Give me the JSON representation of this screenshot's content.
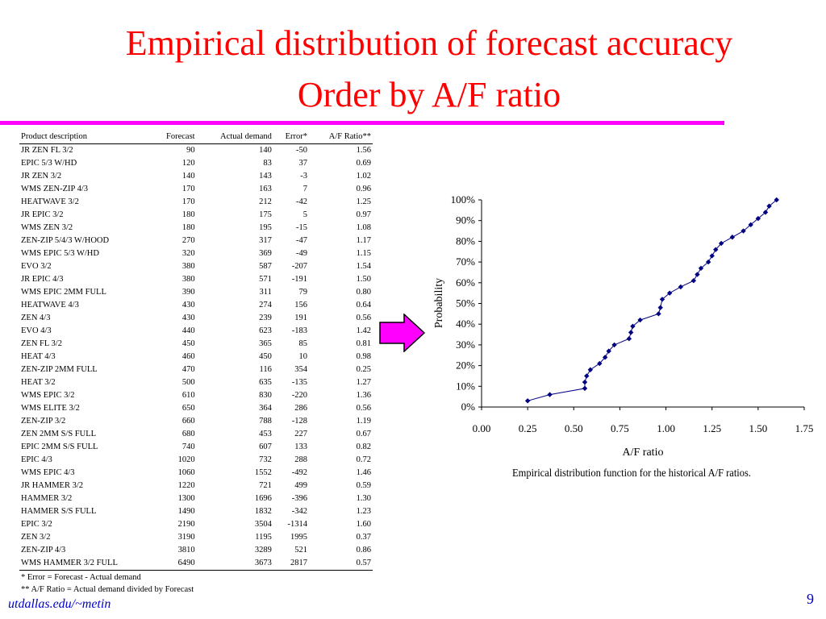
{
  "slide": {
    "title_line1": "Empirical distribution of forecast accuracy",
    "title_line2": "Order by A/F ratio",
    "footer": "utdallas.edu/~metin",
    "page_number": "9",
    "rule_color": "#ff00ff",
    "title_color": "#ff0000"
  },
  "table": {
    "headers": [
      "Product description",
      "Forecast",
      "Actual demand",
      "Error*",
      "A/F Ratio**"
    ],
    "rows": [
      [
        "JR ZEN FL 3/2",
        "90",
        "140",
        "-50",
        "1.56"
      ],
      [
        "EPIC 5/3 W/HD",
        "120",
        "83",
        "37",
        "0.69"
      ],
      [
        "JR ZEN 3/2",
        "140",
        "143",
        "-3",
        "1.02"
      ],
      [
        "WMS ZEN-ZIP 4/3",
        "170",
        "163",
        "7",
        "0.96"
      ],
      [
        "HEATWAVE 3/2",
        "170",
        "212",
        "-42",
        "1.25"
      ],
      [
        "JR EPIC 3/2",
        "180",
        "175",
        "5",
        "0.97"
      ],
      [
        "WMS ZEN 3/2",
        "180",
        "195",
        "-15",
        "1.08"
      ],
      [
        "ZEN-ZIP 5/4/3 W/HOOD",
        "270",
        "317",
        "-47",
        "1.17"
      ],
      [
        "WMS EPIC 5/3 W/HD",
        "320",
        "369",
        "-49",
        "1.15"
      ],
      [
        "EVO  3/2",
        "380",
        "587",
        "-207",
        "1.54"
      ],
      [
        "JR EPIC 4/3",
        "380",
        "571",
        "-191",
        "1.50"
      ],
      [
        "WMS EPIC 2MM FULL",
        "390",
        "311",
        "79",
        "0.80"
      ],
      [
        "HEATWAVE 4/3",
        "430",
        "274",
        "156",
        "0.64"
      ],
      [
        "ZEN 4/3",
        "430",
        "239",
        "191",
        "0.56"
      ],
      [
        "EVO 4/3",
        "440",
        "623",
        "-183",
        "1.42"
      ],
      [
        "ZEN FL 3/2",
        "450",
        "365",
        "85",
        "0.81"
      ],
      [
        "HEAT 4/3",
        "460",
        "450",
        "10",
        "0.98"
      ],
      [
        "ZEN-ZIP 2MM FULL",
        "470",
        "116",
        "354",
        "0.25"
      ],
      [
        "HEAT 3/2",
        "500",
        "635",
        "-135",
        "1.27"
      ],
      [
        "WMS EPIC 3/2",
        "610",
        "830",
        "-220",
        "1.36"
      ],
      [
        "WMS ELITE 3/2",
        "650",
        "364",
        "286",
        "0.56"
      ],
      [
        "ZEN-ZIP 3/2",
        "660",
        "788",
        "-128",
        "1.19"
      ],
      [
        "ZEN 2MM S/S FULL",
        "680",
        "453",
        "227",
        "0.67"
      ],
      [
        "EPIC 2MM S/S FULL",
        "740",
        "607",
        "133",
        "0.82"
      ],
      [
        "EPIC 4/3",
        "1020",
        "732",
        "288",
        "0.72"
      ],
      [
        "WMS EPIC 4/3",
        "1060",
        "1552",
        "-492",
        "1.46"
      ],
      [
        "JR HAMMER 3/2",
        "1220",
        "721",
        "499",
        "0.59"
      ],
      [
        "HAMMER 3/2",
        "1300",
        "1696",
        "-396",
        "1.30"
      ],
      [
        "HAMMER S/S FULL",
        "1490",
        "1832",
        "-342",
        "1.23"
      ],
      [
        "EPIC 3/2",
        "2190",
        "3504",
        "-1314",
        "1.60"
      ],
      [
        "ZEN 3/2",
        "3190",
        "1195",
        "1995",
        "0.37"
      ],
      [
        "ZEN-ZIP 4/3",
        "3810",
        "3289",
        "521",
        "0.86"
      ],
      [
        "WMS HAMMER 3/2 FULL",
        "6490",
        "3673",
        "2817",
        "0.57"
      ]
    ],
    "note1": "* Error = Forecast - Actual demand",
    "note2": "** A/F Ratio = Actual demand divided by Forecast"
  },
  "arrow": {
    "fill": "#ff00ff",
    "stroke": "#000000"
  },
  "chart_data": {
    "type": "scatter",
    "title": "",
    "caption": "Empirical distribution function for the historical A/F ratios.",
    "xlabel": "A/F ratio",
    "ylabel": "Probability",
    "xlim": [
      0,
      1.75
    ],
    "ylim": [
      0,
      1
    ],
    "x_ticks": [
      "0.00",
      "0.25",
      "0.50",
      "0.75",
      "1.00",
      "1.25",
      "1.50",
      "1.75"
    ],
    "y_ticks": [
      "0%",
      "10%",
      "20%",
      "30%",
      "40%",
      "50%",
      "60%",
      "70%",
      "80%",
      "90%",
      "100%"
    ],
    "x_tick_values": [
      0,
      0.25,
      0.5,
      0.75,
      1.0,
      1.25,
      1.5,
      1.75
    ],
    "y_tick_values": [
      0,
      0.1,
      0.2,
      0.3,
      0.4,
      0.5,
      0.6,
      0.7,
      0.8,
      0.9,
      1.0
    ],
    "grid": false,
    "marker_color": "#000080",
    "series": [
      {
        "x": [
          0.25,
          0.37,
          0.56,
          0.56,
          0.57,
          0.59,
          0.64,
          0.67,
          0.69,
          0.72,
          0.8,
          0.81,
          0.82,
          0.86,
          0.96,
          0.97,
          0.98,
          1.02,
          1.08,
          1.15,
          1.17,
          1.19,
          1.23,
          1.25,
          1.27,
          1.3,
          1.36,
          1.42,
          1.46,
          1.5,
          1.54,
          1.56,
          1.6
        ],
        "y": [
          0.03,
          0.06,
          0.09,
          0.12,
          0.15,
          0.18,
          0.21,
          0.24,
          0.27,
          0.3,
          0.33,
          0.36,
          0.39,
          0.42,
          0.45,
          0.48,
          0.52,
          0.55,
          0.58,
          0.61,
          0.64,
          0.67,
          0.7,
          0.73,
          0.76,
          0.79,
          0.82,
          0.85,
          0.88,
          0.91,
          0.94,
          0.97,
          1.0
        ]
      }
    ]
  }
}
